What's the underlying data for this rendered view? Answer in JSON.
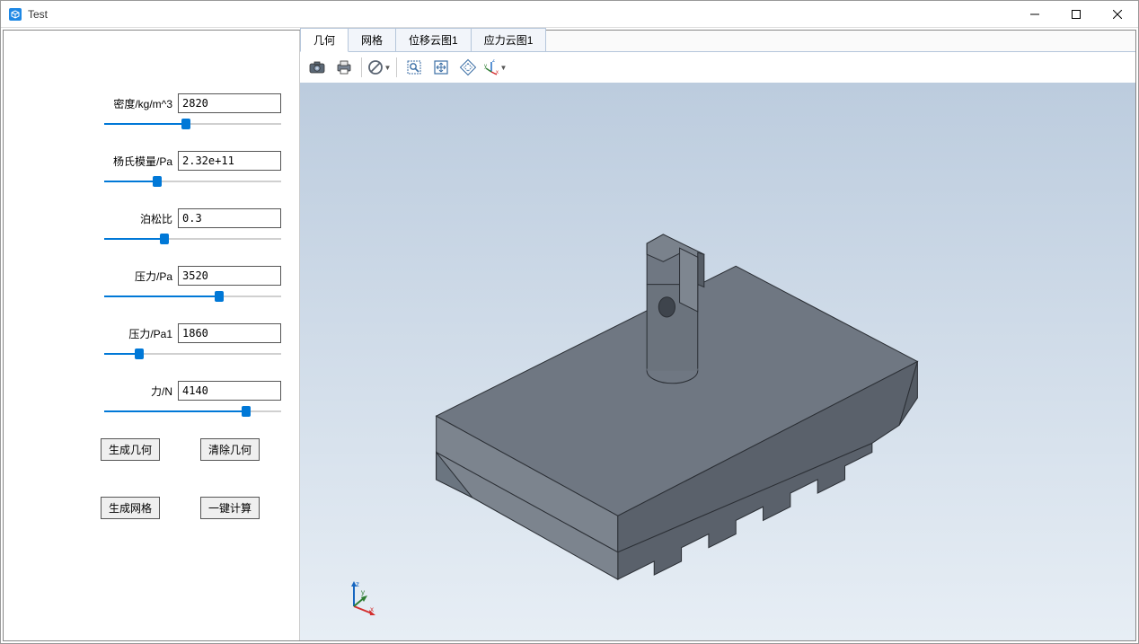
{
  "window": {
    "title": "Test",
    "icon_color": "#1e88e5"
  },
  "sidebar": {
    "params": [
      {
        "label": "密度/kg/m^3",
        "value": "2820",
        "slider_pct": 46
      },
      {
        "label": "杨氏模量/Pa",
        "value": "2.32e+11",
        "slider_pct": 30
      },
      {
        "label": "泊松比",
        "value": "0.3",
        "slider_pct": 34
      },
      {
        "label": "压力/Pa",
        "value": "3520",
        "slider_pct": 65
      },
      {
        "label": "压力/Pa1",
        "value": "1860",
        "slider_pct": 20
      },
      {
        "label": "力/N",
        "value": "4140",
        "slider_pct": 80
      }
    ],
    "buttons": {
      "gen_geom": "生成几何",
      "clear_geom": "清除几何",
      "gen_mesh": "生成网格",
      "one_click": "一键计算"
    }
  },
  "tabs": [
    {
      "label": "几何",
      "active": true
    },
    {
      "label": "网格",
      "active": false
    },
    {
      "label": "位移云图1",
      "active": false
    },
    {
      "label": "应力云图1",
      "active": false
    }
  ],
  "toolbar_icons": [
    "camera",
    "print",
    "sep",
    "no-entry",
    "sep",
    "zoom-window",
    "fit",
    "select-extent",
    "axis-mode"
  ],
  "viewport": {
    "bg_top": "#bcccde",
    "bg_bottom": "#e7eef5",
    "model_fill_top": "#6f7782",
    "model_fill_side": "#5a616b",
    "model_fill_front": "#7c848e",
    "model_edge": "#2b2f35",
    "axis_x": "#d32f2f",
    "axis_y": "#2e7d32",
    "axis_z": "#1565c0"
  }
}
